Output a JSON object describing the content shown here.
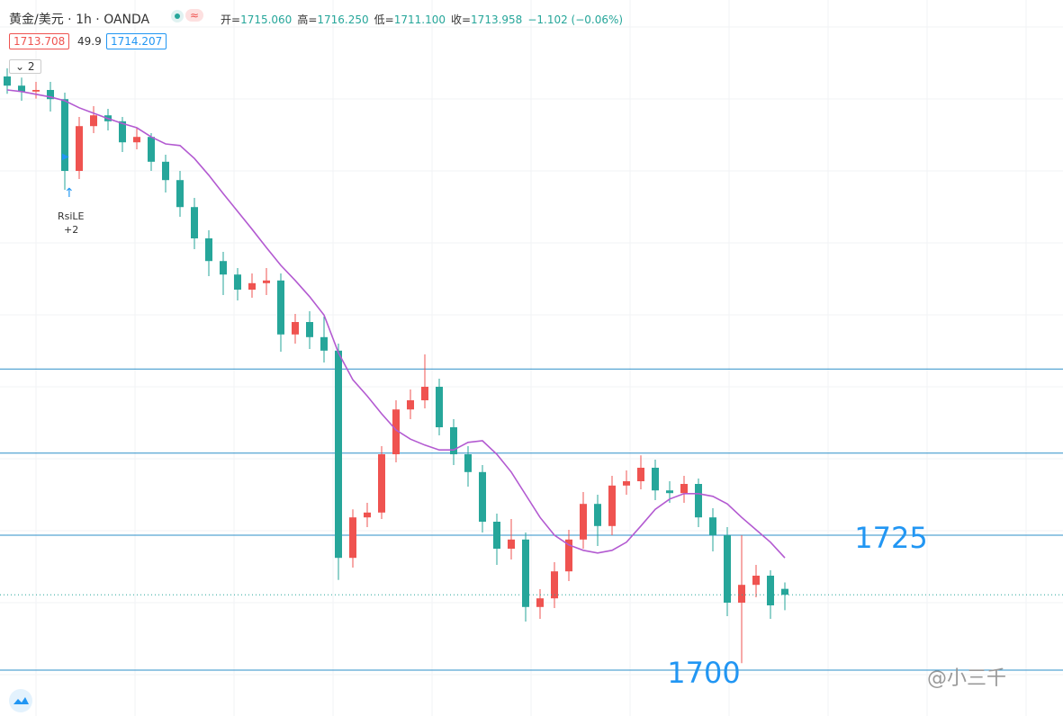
{
  "header": {
    "symbol": "黄金/美元 · 1h · OANDA",
    "badge": "≈",
    "ohlc": [
      {
        "label": "开=",
        "value": "1715.060"
      },
      {
        "label": "高=",
        "value": "1716.250"
      },
      {
        "label": "低=",
        "value": "1711.100"
      },
      {
        "label": "收=",
        "value": "1713.958"
      }
    ],
    "change": "−1.102 (−0.06%)",
    "bid": "1713.708",
    "spread": "49.9",
    "ask": "1714.207",
    "indicator_count": "2"
  },
  "signal": {
    "name": "RsiLE",
    "qty": "+2"
  },
  "watermark": "@小三千",
  "chart_data": {
    "type": "candlestick",
    "up_color": "#ef5350",
    "down_color": "#26a69a",
    "ylim": [
      1691.5,
      1824.17
    ],
    "open": [
      1810.0,
      1808.3,
      1807.2,
      1807.5,
      1805.8,
      1792.5,
      1800.8,
      1802.8,
      1801.7,
      1797.8,
      1798.8,
      1794.2,
      1790.8,
      1785.8,
      1780.0,
      1775.8,
      1773.3,
      1770.5,
      1771.7,
      1772.2,
      1762.2,
      1764.5,
      1761.7,
      1759.2,
      1720.8,
      1728.3,
      1729.2,
      1740.0,
      1748.3,
      1750.0,
      1752.5,
      1745.0,
      1740.0,
      1736.7,
      1727.5,
      1722.5,
      1724.2,
      1711.7,
      1713.3,
      1718.3,
      1724.2,
      1730.8,
      1726.7,
      1734.2,
      1735.0,
      1737.5,
      1733.3,
      1732.8,
      1734.5,
      1728.3,
      1725.0,
      1712.5,
      1715.8,
      1717.5,
      1715.06
    ],
    "high": [
      1811.5,
      1809.8,
      1809.0,
      1809.0,
      1807.0,
      1802.5,
      1804.5,
      1804.0,
      1802.5,
      1800.5,
      1799.5,
      1795.5,
      1792.5,
      1787.5,
      1781.5,
      1777.5,
      1774.5,
      1773.5,
      1774.5,
      1773.5,
      1766.0,
      1766.5,
      1765.5,
      1760.5,
      1729.8,
      1731.0,
      1741.5,
      1750.0,
      1752.0,
      1758.5,
      1754.0,
      1746.5,
      1741.5,
      1738.0,
      1729.0,
      1728.0,
      1725.5,
      1715.0,
      1720.0,
      1726.0,
      1733.0,
      1732.5,
      1736.0,
      1737.0,
      1739.8,
      1739.0,
      1735.0,
      1736.0,
      1735.5,
      1730.0,
      1726.5,
      1725.0,
      1719.5,
      1718.5,
      1716.25
    ],
    "low": [
      1806.8,
      1805.5,
      1805.9,
      1803.5,
      1789.0,
      1791.0,
      1799.5,
      1800.0,
      1796.0,
      1796.5,
      1792.5,
      1788.5,
      1784.0,
      1778.0,
      1773.0,
      1769.5,
      1768.5,
      1769.0,
      1769.5,
      1759.0,
      1760.5,
      1759.5,
      1757.0,
      1716.7,
      1719.0,
      1726.5,
      1728.0,
      1738.5,
      1746.5,
      1748.5,
      1743.5,
      1738.0,
      1734.0,
      1725.5,
      1719.5,
      1720.5,
      1709.0,
      1709.5,
      1711.5,
      1716.5,
      1722.5,
      1723.0,
      1725.0,
      1732.5,
      1733.5,
      1731.5,
      1731.0,
      1731.0,
      1726.5,
      1722.0,
      1710.0,
      1701.3,
      1713.5,
      1709.5,
      1711.1
    ],
    "close": [
      1808.3,
      1807.2,
      1807.5,
      1805.8,
      1792.5,
      1800.8,
      1802.8,
      1801.7,
      1797.8,
      1798.8,
      1794.2,
      1790.8,
      1785.8,
      1780.0,
      1775.8,
      1773.3,
      1770.5,
      1771.7,
      1772.2,
      1762.2,
      1764.5,
      1761.7,
      1759.2,
      1720.8,
      1728.3,
      1729.2,
      1740.0,
      1748.3,
      1750.0,
      1752.5,
      1745.0,
      1740.0,
      1736.7,
      1727.5,
      1722.5,
      1724.2,
      1711.7,
      1713.3,
      1718.3,
      1724.2,
      1730.8,
      1726.7,
      1734.2,
      1735.0,
      1737.5,
      1733.3,
      1732.8,
      1734.5,
      1728.3,
      1725.0,
      1712.5,
      1715.8,
      1717.5,
      1712.0,
      1713.958
    ],
    "ma": {
      "color": "#b35ad1",
      "values": [
        1807.5,
        1807.2,
        1806.7,
        1806.2,
        1805.5,
        1804.2,
        1803.2,
        1802.2,
        1801.3,
        1800.5,
        1798.8,
        1797.5,
        1797.2,
        1794.8,
        1791.7,
        1788.3,
        1785.0,
        1781.7,
        1778.3,
        1775.0,
        1772.2,
        1769.2,
        1765.8,
        1758.8,
        1753.8,
        1750.8,
        1747.5,
        1744.5,
        1742.8,
        1741.7,
        1740.8,
        1740.8,
        1742.2,
        1742.5,
        1740.0,
        1736.7,
        1732.5,
        1728.3,
        1725.0,
        1723.2,
        1722.2,
        1721.7,
        1722.2,
        1723.7,
        1726.7,
        1729.8,
        1731.7,
        1732.7,
        1732.7,
        1732.2,
        1730.8,
        1728.3,
        1726.0,
        1723.7,
        1720.8
      ]
    },
    "line_color": "#2b8fc9",
    "lines": [
      1755.8,
      1740.2
    ],
    "labeled_lines": [
      1725,
      1700
    ]
  }
}
